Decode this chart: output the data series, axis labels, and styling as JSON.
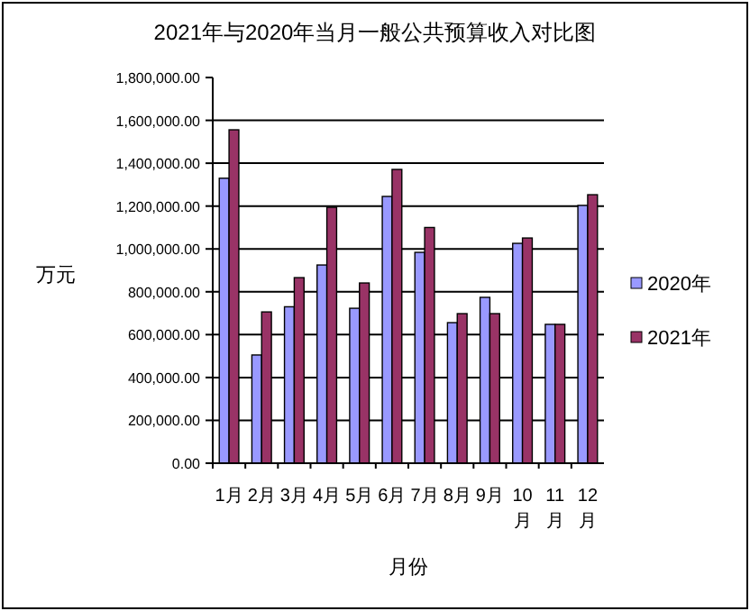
{
  "chart_data": {
    "type": "bar",
    "title": "2021年与2020年当月一般公共预算收入对比图",
    "xlabel": "月份",
    "ylabel": "万元",
    "categories": [
      "1月",
      "2月",
      "3月",
      "4月",
      "5月",
      "6月",
      "7月",
      "8月",
      "9月",
      "10月",
      "11月",
      "12月"
    ],
    "series": [
      {
        "name": "2020年",
        "color": "#9999ff",
        "values": [
          1330000,
          505000,
          730000,
          925000,
          723000,
          1245000,
          984000,
          656000,
          774000,
          1026000,
          648000,
          1203000
        ]
      },
      {
        "name": "2021年",
        "color": "#993366",
        "values": [
          1556000,
          706000,
          866000,
          1194000,
          841000,
          1371000,
          1100000,
          698000,
          698000,
          1051000,
          648000,
          1253000
        ]
      }
    ],
    "ylim": [
      0,
      1800000
    ],
    "yticks": [
      {
        "value": 0,
        "label": "0.00"
      },
      {
        "value": 200000,
        "label": "200,000.00"
      },
      {
        "value": 400000,
        "label": "400,000.00"
      },
      {
        "value": 600000,
        "label": "600,000.00"
      },
      {
        "value": 800000,
        "label": "800,000.00"
      },
      {
        "value": 1000000,
        "label": "1,000,000.00"
      },
      {
        "value": 1200000,
        "label": "1,200,000.00"
      },
      {
        "value": 1400000,
        "label": "1,400,000.00"
      },
      {
        "value": 1600000,
        "label": "1,600,000.00"
      },
      {
        "value": 1800000,
        "label": "1,800,000.00"
      }
    ],
    "grid": "y",
    "legend": "right"
  }
}
